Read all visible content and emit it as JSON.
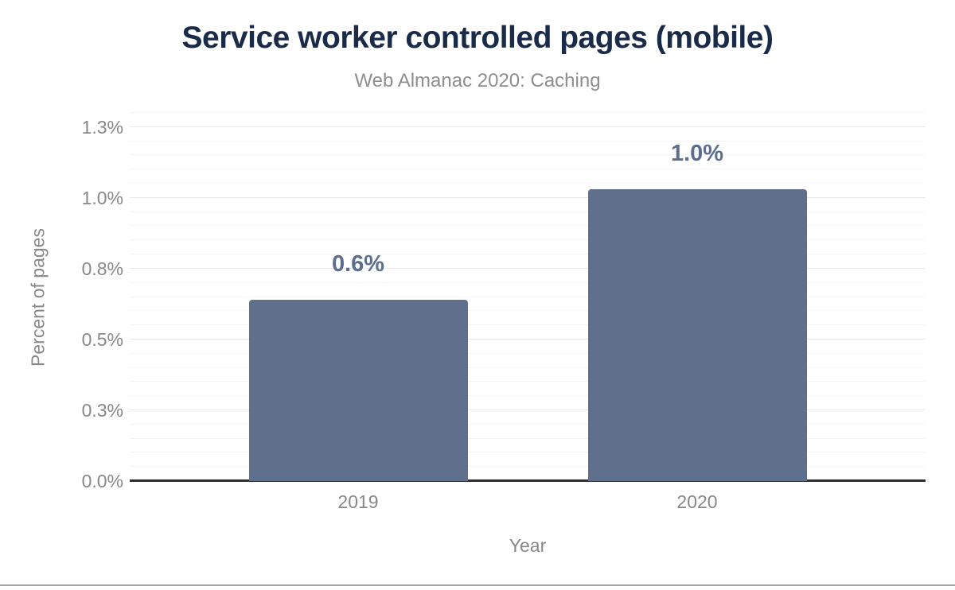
{
  "chart_data": {
    "type": "bar",
    "title": "Service worker controlled pages (mobile)",
    "subtitle": "Web Almanac 2020: Caching",
    "categories": [
      "2019",
      "2020"
    ],
    "values": [
      0.64,
      1.03
    ],
    "value_labels": [
      "0.6%",
      "1.0%"
    ],
    "xlabel": "Year",
    "ylabel": "Percent of pages",
    "ylim": [
      0,
      1.3
    ],
    "yticks": [
      {
        "value": 0.0,
        "label": "0.0%"
      },
      {
        "value": 0.25,
        "label": "0.3%"
      },
      {
        "value": 0.5,
        "label": "0.5%"
      },
      {
        "value": 0.75,
        "label": "0.8%"
      },
      {
        "value": 1.0,
        "label": "1.0%"
      },
      {
        "value": 1.25,
        "label": "1.3%"
      }
    ],
    "minor_tick_step": 0.05,
    "grid": true,
    "legend": "none",
    "colors": {
      "bar": "#5f708c",
      "value_label": "#5b6e8f",
      "title": "#1a2b49",
      "subtitle": "#8e8e8e",
      "axis_text": "#888888",
      "axis_line": "#2e2e2e",
      "grid_major": "#e9e9e9",
      "grid_minor": "#f6f6f6",
      "bottom_rule": "#a6a6a6"
    }
  }
}
